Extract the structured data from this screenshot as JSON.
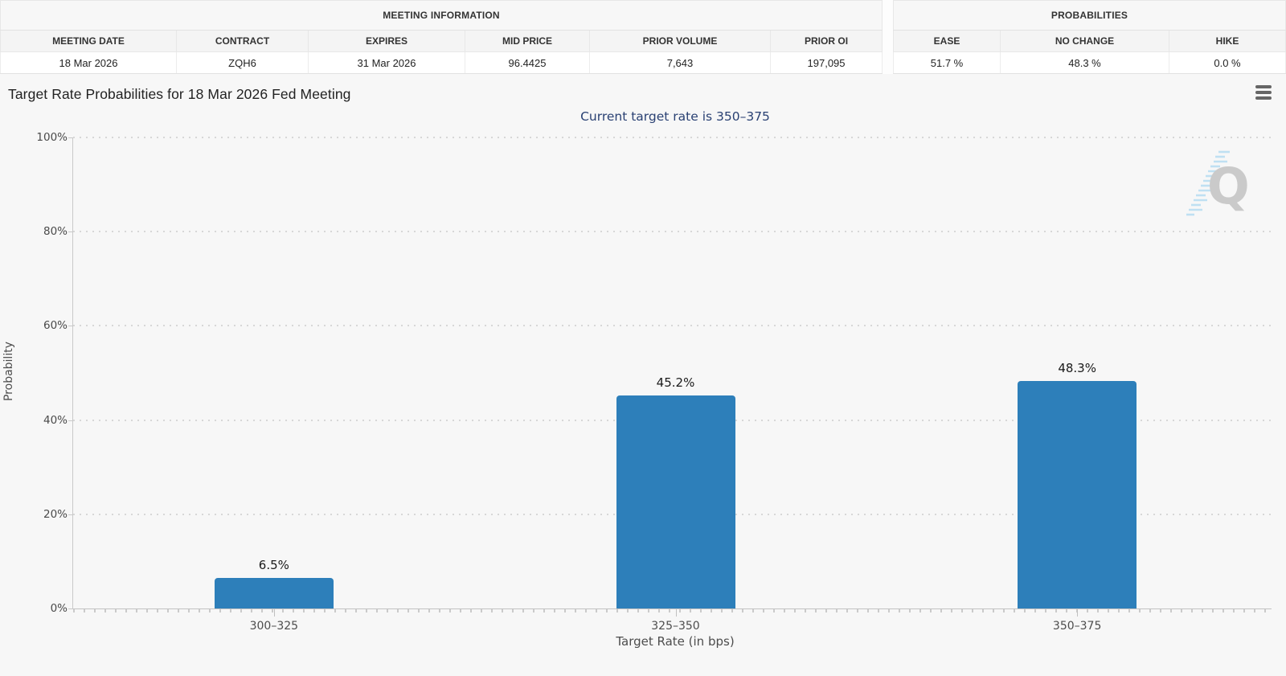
{
  "meeting_information": {
    "title": "MEETING INFORMATION",
    "columns": [
      "MEETING DATE",
      "CONTRACT",
      "EXPIRES",
      "MID PRICE",
      "PRIOR VOLUME",
      "PRIOR OI"
    ],
    "row": [
      "18 Mar 2026",
      "ZQH6",
      "31 Mar 2026",
      "96.4425",
      "7,643",
      "197,095"
    ]
  },
  "probabilities": {
    "title": "PROBABILITIES",
    "columns": [
      "EASE",
      "NO CHANGE",
      "HIKE"
    ],
    "row": [
      "51.7 %",
      "48.3 %",
      "0.0 %"
    ]
  },
  "chart": {
    "title": "Target Rate Probabilities for 18 Mar 2026 Fed Meeting",
    "subtitle": "Current target rate is 350–375",
    "watermark_letter": "Q"
  },
  "chart_data": {
    "type": "bar",
    "categories": [
      "300–325",
      "325–350",
      "350–375"
    ],
    "values": [
      6.5,
      45.2,
      48.3
    ],
    "value_labels": [
      "6.5%",
      "45.2%",
      "48.3%"
    ],
    "title": "Target Rate Probabilities for 18 Mar 2026 Fed Meeting",
    "subtitle": "Current target rate is 350–375",
    "xlabel": "Target Rate (in bps)",
    "ylabel": "Probability",
    "ylim": [
      0,
      100
    ],
    "yticks": [
      0,
      20,
      40,
      60,
      80,
      100
    ],
    "ytick_labels": [
      "0%",
      "20%",
      "40%",
      "60%",
      "80%",
      "100%"
    ],
    "grid": "dotted-horizontal",
    "legend": false,
    "bar_color": "#2d7fba"
  }
}
